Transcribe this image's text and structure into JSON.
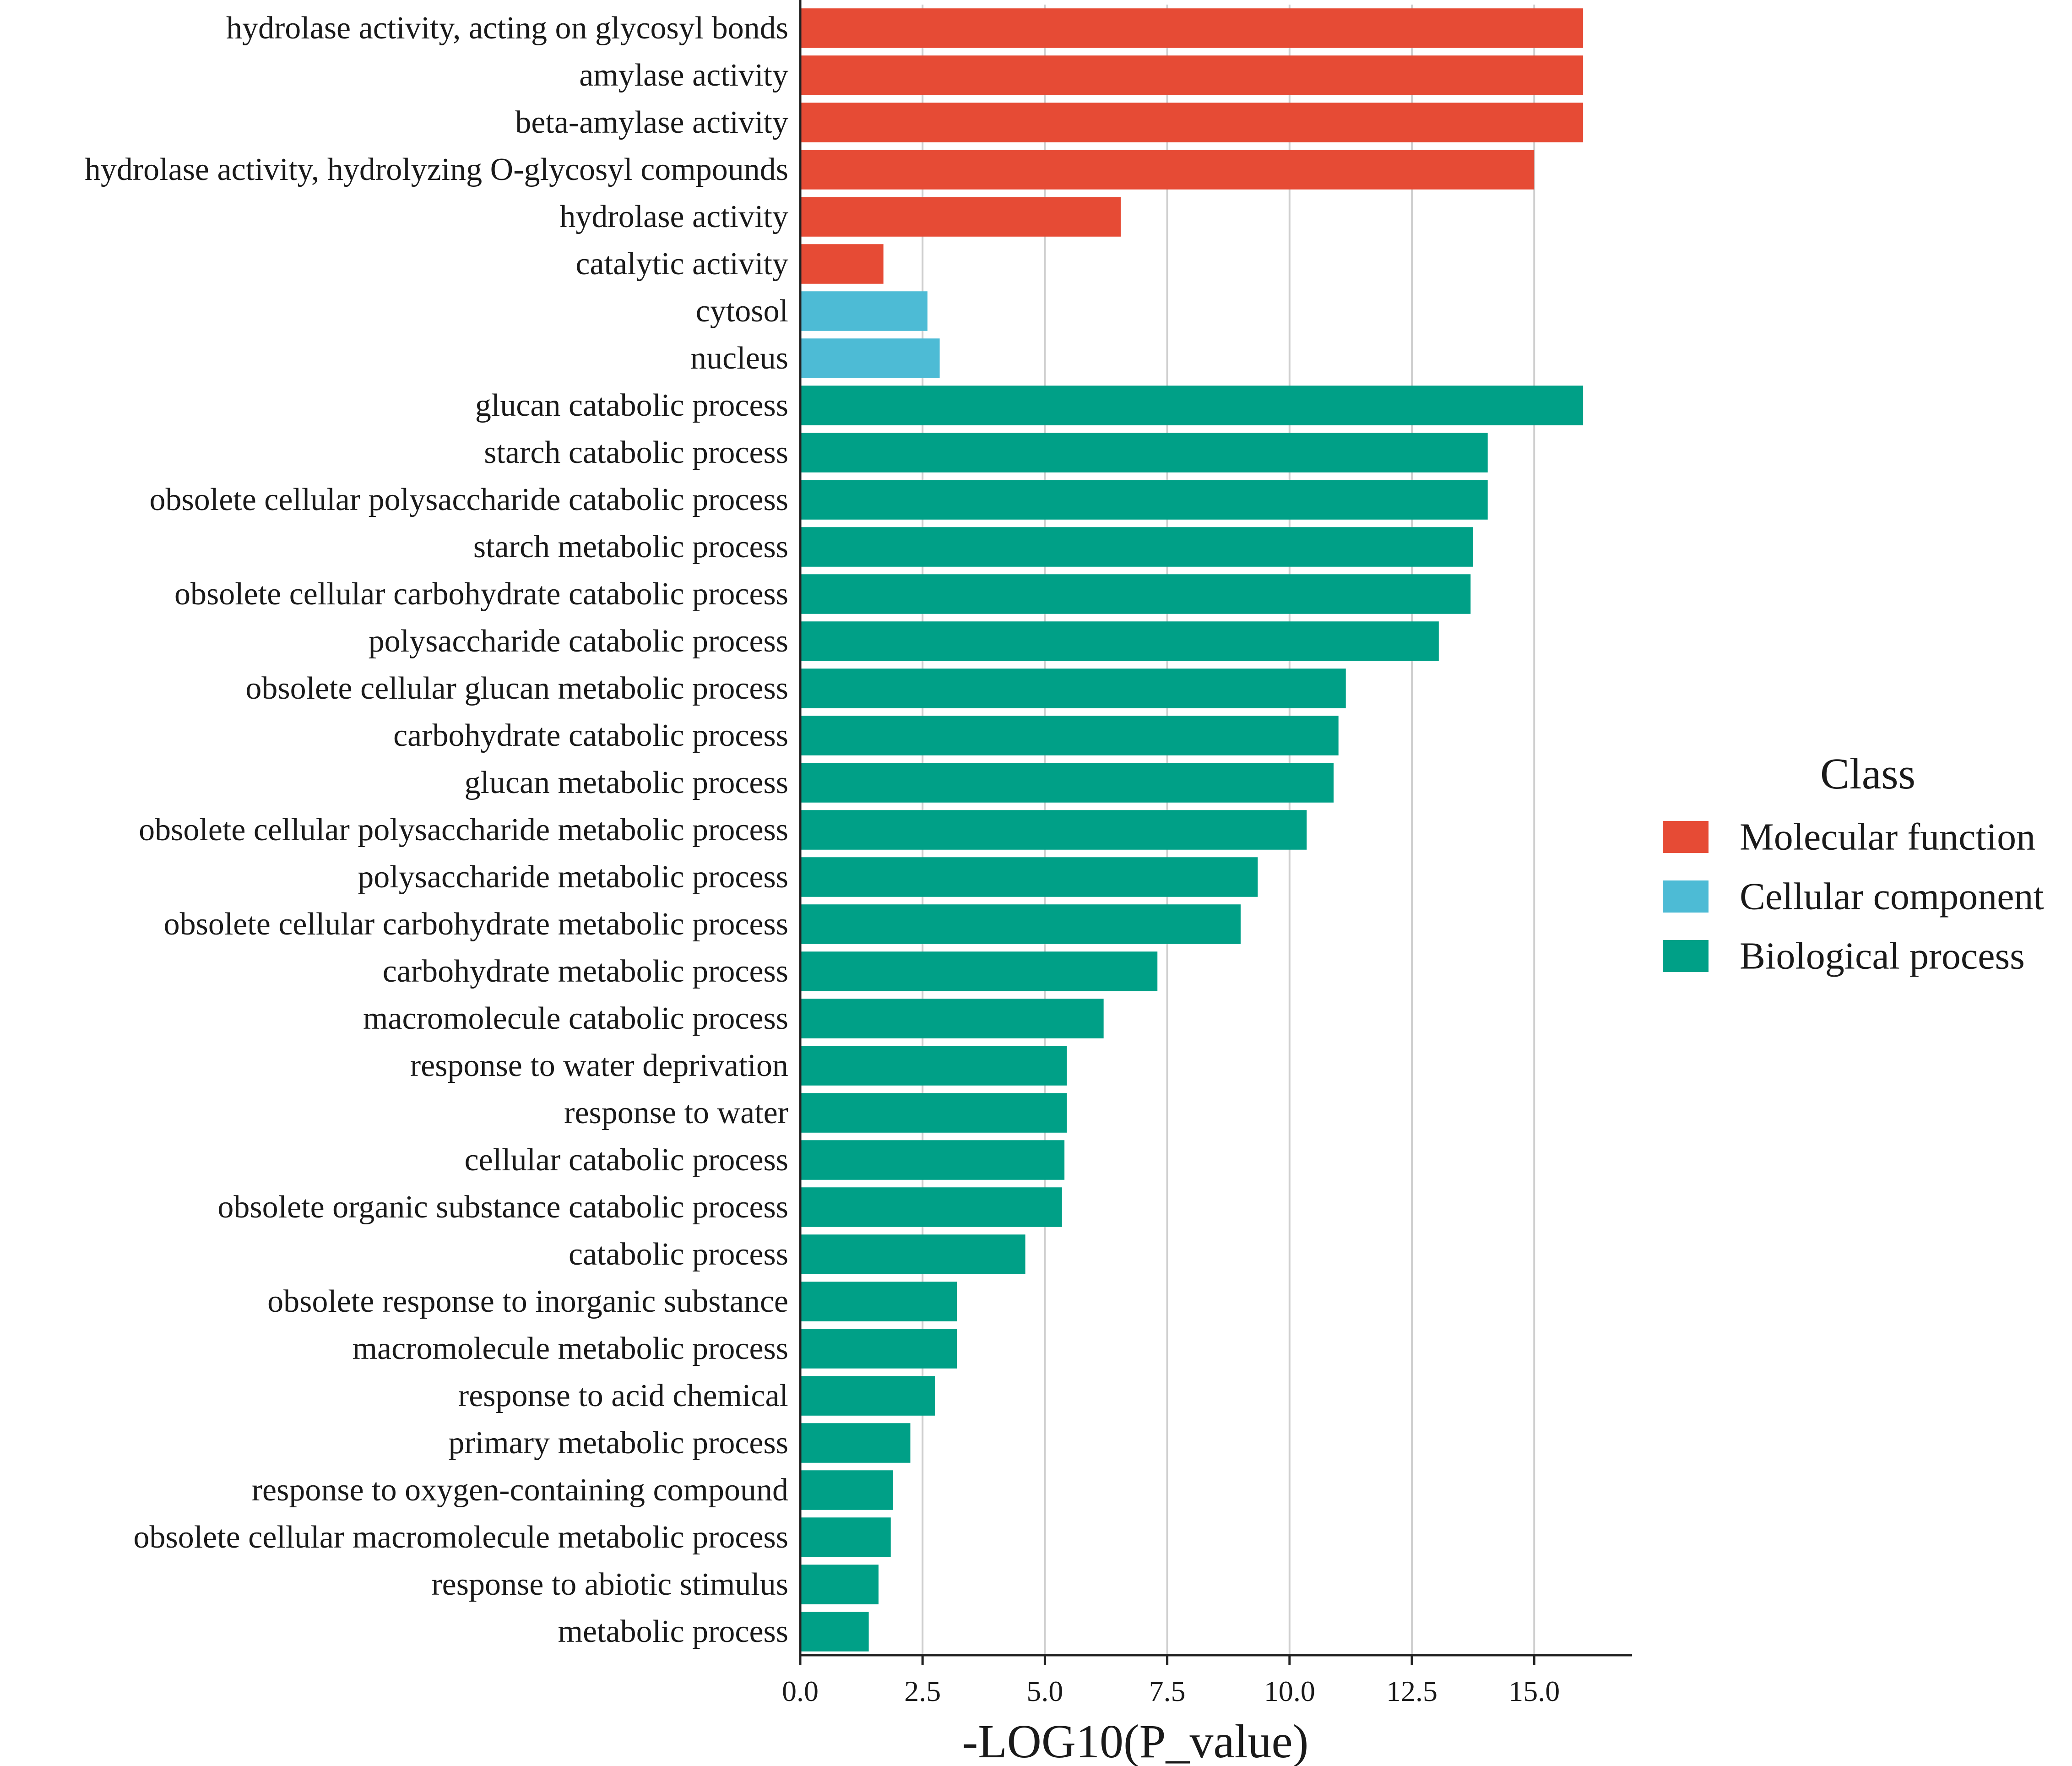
{
  "chart_data": {
    "type": "bar",
    "orientation": "horizontal",
    "xlabel": "-LOG10(P_value)",
    "ylabel": "",
    "xlim": [
      0,
      17
    ],
    "xticks": [
      0,
      2.5,
      5,
      7.5,
      10,
      12.5,
      15
    ],
    "xtick_labels": [
      "0.0",
      "2.5",
      "5.0",
      "7.5",
      "10.0",
      "12.5",
      "15.0"
    ],
    "grid": true,
    "legend": {
      "title": "Class",
      "position": "right",
      "entries": [
        {
          "name": "Molecular function",
          "color": "#e64b35"
        },
        {
          "name": "Cellular component",
          "color": "#4dbbd5"
        },
        {
          "name": "Biological process",
          "color": "#00a087"
        }
      ]
    },
    "bars": [
      {
        "label": "hydrolase activity, acting on glycosyl bonds",
        "value": 16.0,
        "class": "Molecular function"
      },
      {
        "label": "amylase activity",
        "value": 16.0,
        "class": "Molecular function"
      },
      {
        "label": "beta-amylase activity",
        "value": 16.0,
        "class": "Molecular function"
      },
      {
        "label": "hydrolase activity, hydrolyzing O-glycosyl compounds",
        "value": 15.0,
        "class": "Molecular function"
      },
      {
        "label": "hydrolase activity",
        "value": 6.55,
        "class": "Molecular function"
      },
      {
        "label": "catalytic activity",
        "value": 1.7,
        "class": "Molecular function"
      },
      {
        "label": "cytosol",
        "value": 2.6,
        "class": "Cellular component"
      },
      {
        "label": "nucleus",
        "value": 2.85,
        "class": "Cellular component"
      },
      {
        "label": "glucan catabolic process",
        "value": 16.0,
        "class": "Biological process"
      },
      {
        "label": "starch catabolic process",
        "value": 14.05,
        "class": "Biological process"
      },
      {
        "label": "obsolete cellular polysaccharide catabolic process",
        "value": 14.05,
        "class": "Biological process"
      },
      {
        "label": "starch metabolic process",
        "value": 13.75,
        "class": "Biological process"
      },
      {
        "label": "obsolete cellular carbohydrate catabolic process",
        "value": 13.7,
        "class": "Biological process"
      },
      {
        "label": "polysaccharide catabolic process",
        "value": 13.05,
        "class": "Biological process"
      },
      {
        "label": "obsolete cellular glucan metabolic process",
        "value": 11.15,
        "class": "Biological process"
      },
      {
        "label": "carbohydrate catabolic process",
        "value": 11.0,
        "class": "Biological process"
      },
      {
        "label": "glucan metabolic process",
        "value": 10.9,
        "class": "Biological process"
      },
      {
        "label": "obsolete cellular polysaccharide metabolic process",
        "value": 10.35,
        "class": "Biological process"
      },
      {
        "label": "polysaccharide metabolic process",
        "value": 9.35,
        "class": "Biological process"
      },
      {
        "label": "obsolete cellular carbohydrate metabolic process",
        "value": 9.0,
        "class": "Biological process"
      },
      {
        "label": "carbohydrate metabolic process",
        "value": 7.3,
        "class": "Biological process"
      },
      {
        "label": "macromolecule catabolic process",
        "value": 6.2,
        "class": "Biological process"
      },
      {
        "label": "response to water deprivation",
        "value": 5.45,
        "class": "Biological process"
      },
      {
        "label": "response to water",
        "value": 5.45,
        "class": "Biological process"
      },
      {
        "label": "cellular catabolic process",
        "value": 5.4,
        "class": "Biological process"
      },
      {
        "label": "obsolete organic substance catabolic process",
        "value": 5.35,
        "class": "Biological process"
      },
      {
        "label": "catabolic process",
        "value": 4.6,
        "class": "Biological process"
      },
      {
        "label": "obsolete response to inorganic substance",
        "value": 3.2,
        "class": "Biological process"
      },
      {
        "label": "macromolecule metabolic process",
        "value": 3.2,
        "class": "Biological process"
      },
      {
        "label": "response to acid chemical",
        "value": 2.75,
        "class": "Biological process"
      },
      {
        "label": "primary metabolic process",
        "value": 2.25,
        "class": "Biological process"
      },
      {
        "label": "response to oxygen-containing compound",
        "value": 1.9,
        "class": "Biological process"
      },
      {
        "label": "obsolete cellular macromolecule metabolic process",
        "value": 1.85,
        "class": "Biological process"
      },
      {
        "label": "response to abiotic stimulus",
        "value": 1.6,
        "class": "Biological process"
      },
      {
        "label": "metabolic process",
        "value": 1.4,
        "class": "Biological process"
      }
    ]
  }
}
